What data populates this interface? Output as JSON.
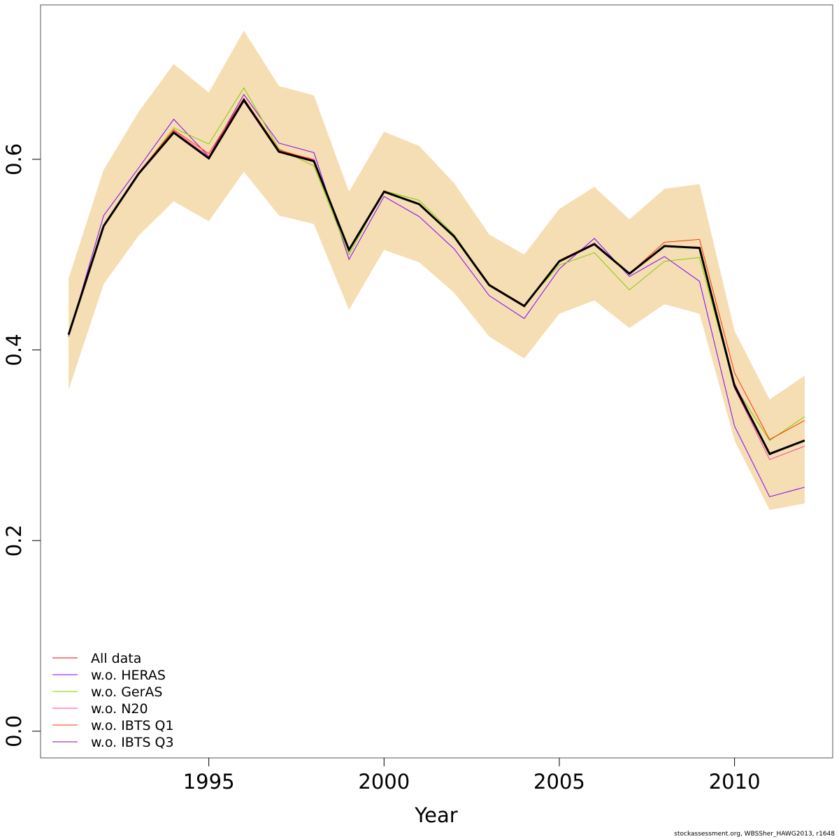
{
  "chart_data": {
    "type": "line",
    "title": "",
    "xlabel": "Year",
    "ylabel": "",
    "xlim": [
      1990.2,
      2012.8
    ],
    "ylim": [
      -0.028,
      0.762
    ],
    "x_ticks": [
      1995,
      2000,
      2005,
      2010
    ],
    "y_ticks": [
      0.0,
      0.2,
      0.4,
      0.6
    ],
    "x_tick_labels": [
      "1995",
      "2000",
      "2005",
      "2010"
    ],
    "y_tick_labels": [
      "0.0",
      "0.2",
      "0.4",
      "0.6"
    ],
    "x": [
      1991,
      1992,
      1993,
      1994,
      1995,
      1996,
      1997,
      1998,
      1999,
      2000,
      2001,
      2002,
      2003,
      2004,
      2005,
      2006,
      2007,
      2008,
      2009,
      2010,
      2011,
      2012
    ],
    "confidence_band": {
      "color": "#F5DEB3",
      "lower": [
        0.358,
        0.469,
        0.52,
        0.556,
        0.535,
        0.587,
        0.541,
        0.532,
        0.442,
        0.505,
        0.492,
        0.46,
        0.414,
        0.391,
        0.438,
        0.452,
        0.423,
        0.448,
        0.438,
        0.305,
        0.232,
        0.239
      ],
      "upper": [
        0.475,
        0.589,
        0.65,
        0.7,
        0.67,
        0.735,
        0.677,
        0.667,
        0.566,
        0.629,
        0.614,
        0.575,
        0.521,
        0.5,
        0.548,
        0.571,
        0.537,
        0.569,
        0.574,
        0.42,
        0.348,
        0.373
      ]
    },
    "main_series": {
      "name": "",
      "color": "#000000",
      "values": [
        0.416,
        0.53,
        0.585,
        0.628,
        0.601,
        0.662,
        0.608,
        0.598,
        0.505,
        0.566,
        0.553,
        0.519,
        0.468,
        0.446,
        0.493,
        0.511,
        0.48,
        0.509,
        0.507,
        0.362,
        0.291,
        0.305
      ]
    },
    "series": [
      {
        "name": "All data",
        "color": "#FF0000",
        "values": [
          0.416,
          0.53,
          0.585,
          0.628,
          0.601,
          0.662,
          0.608,
          0.598,
          0.505,
          0.566,
          0.553,
          0.519,
          0.468,
          0.446,
          0.493,
          0.511,
          0.48,
          0.509,
          0.507,
          0.362,
          0.291,
          0.305
        ]
      },
      {
        "name": "w.o. HERAS",
        "color": "#8000FF",
        "values": [
          0.414,
          0.541,
          0.591,
          0.642,
          0.603,
          0.668,
          0.617,
          0.607,
          0.495,
          0.561,
          0.54,
          0.506,
          0.457,
          0.433,
          0.485,
          0.517,
          0.477,
          0.498,
          0.472,
          0.32,
          0.246,
          0.256
        ]
      },
      {
        "name": "w.o. GerAS",
        "color": "#80CC00",
        "values": [
          0.416,
          0.53,
          0.585,
          0.633,
          0.616,
          0.675,
          0.611,
          0.593,
          0.5,
          0.567,
          0.557,
          0.521,
          0.468,
          0.447,
          0.489,
          0.502,
          0.463,
          0.493,
          0.497,
          0.362,
          0.305,
          0.33
        ]
      },
      {
        "name": "w.o. N20",
        "color": "#FF40A0",
        "values": [
          0.416,
          0.53,
          0.586,
          0.63,
          0.603,
          0.664,
          0.609,
          0.6,
          0.505,
          0.566,
          0.553,
          0.519,
          0.468,
          0.446,
          0.493,
          0.511,
          0.48,
          0.509,
          0.508,
          0.36,
          0.285,
          0.299
        ]
      },
      {
        "name": "w.o. IBTS Q1",
        "color": "#FF3300",
        "values": [
          0.416,
          0.531,
          0.586,
          0.631,
          0.606,
          0.664,
          0.61,
          0.599,
          0.506,
          0.567,
          0.553,
          0.52,
          0.469,
          0.447,
          0.494,
          0.512,
          0.48,
          0.513,
          0.516,
          0.376,
          0.306,
          0.326
        ]
      },
      {
        "name": "w.o. IBTS Q3",
        "color": "#A000A0",
        "values": [
          0.416,
          0.53,
          0.585,
          0.628,
          0.601,
          0.662,
          0.608,
          0.598,
          0.505,
          0.566,
          0.553,
          0.519,
          0.468,
          0.446,
          0.493,
          0.512,
          0.48,
          0.509,
          0.507,
          0.365,
          0.29,
          0.305
        ]
      }
    ],
    "legend_position": "bottom-left",
    "grid": false
  },
  "footer": {
    "note": "stockassessment.org, WBSSher_HAWG2013, r1648"
  }
}
